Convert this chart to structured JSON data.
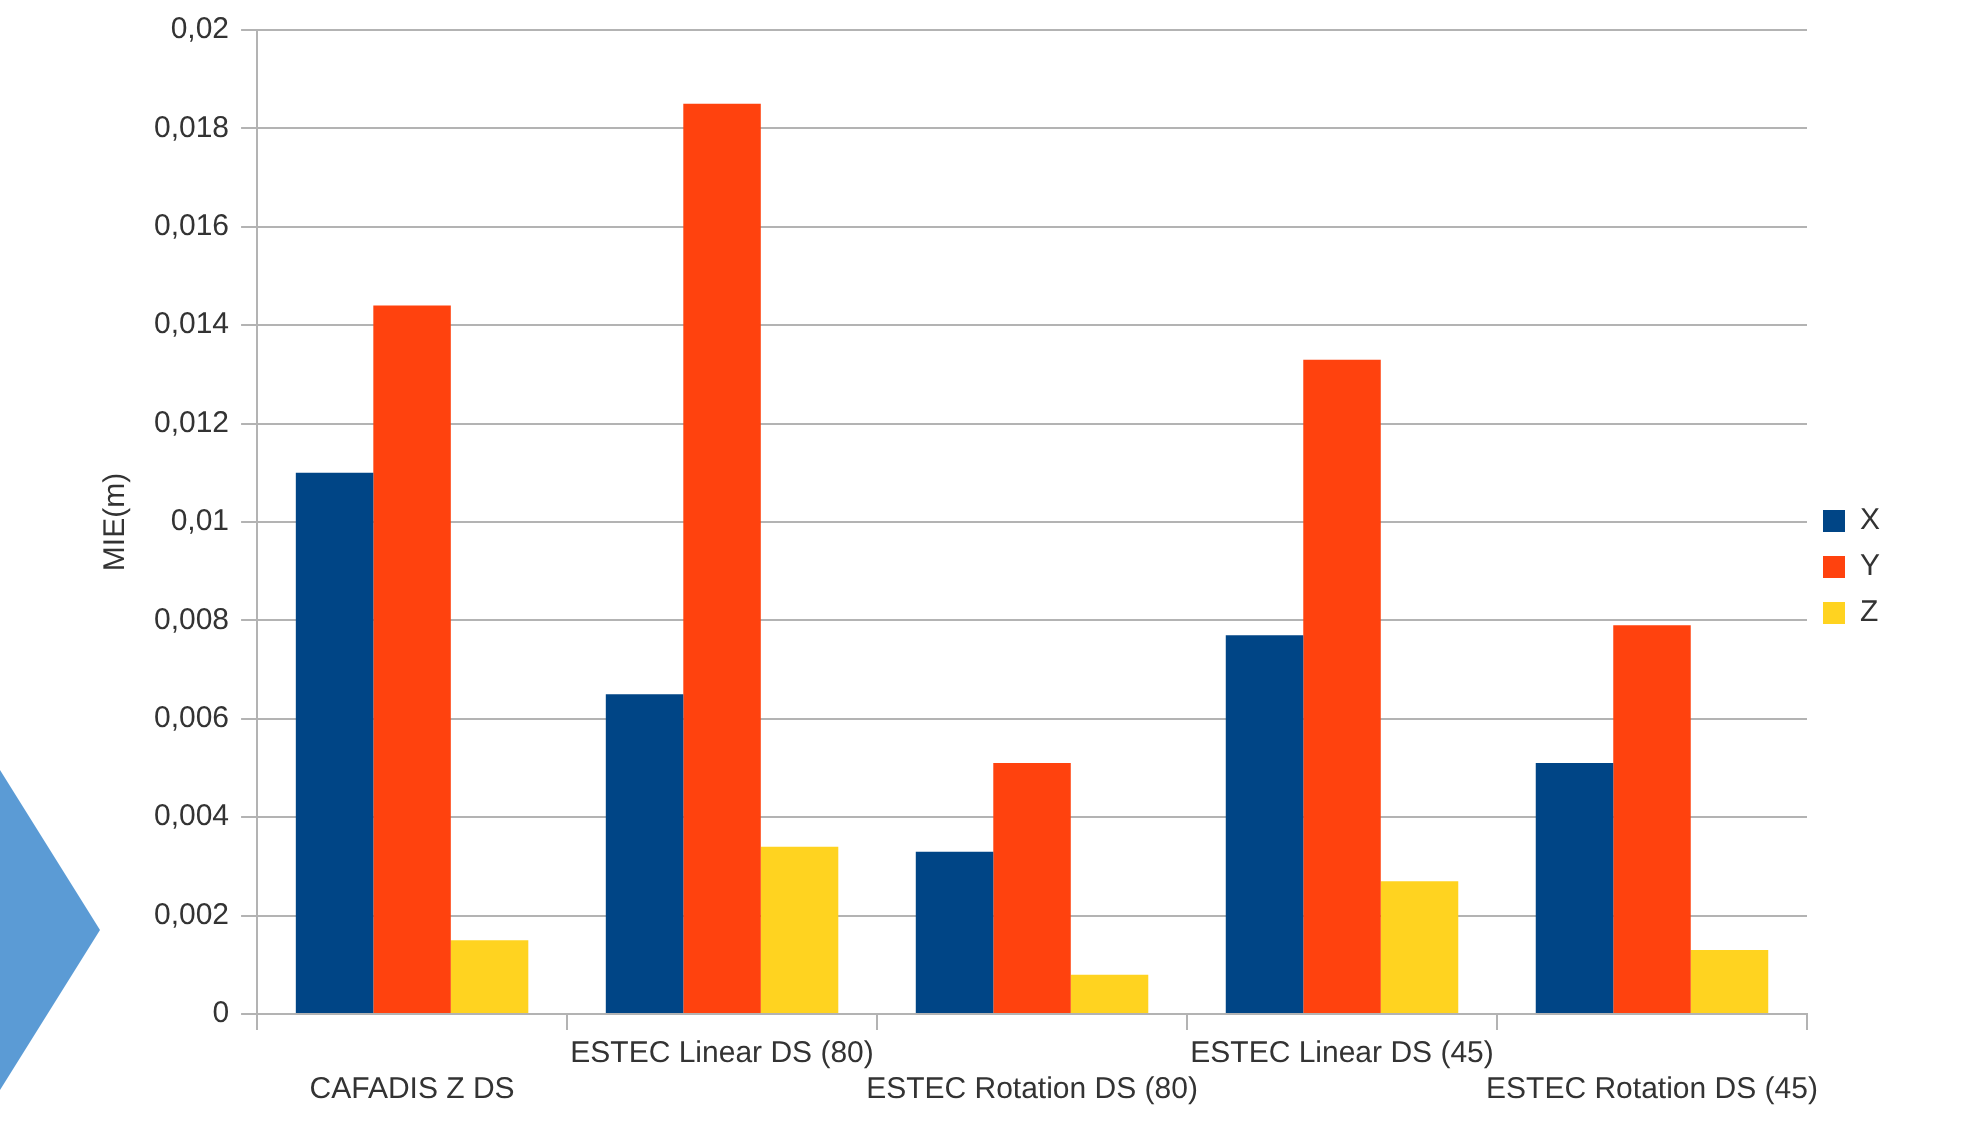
{
  "chart_data": {
    "type": "bar",
    "ylabel": "MIE(m)",
    "categories": [
      "CAFADIS Z DS",
      "ESTEC Linear DS (80)",
      "ESTEC Rotation DS (80)",
      "ESTEC Linear DS (45)",
      "ESTEC Rotation DS (45)"
    ],
    "series": [
      {
        "name": "X",
        "color": "#004586",
        "values": [
          0.011,
          0.0065,
          0.0033,
          0.0077,
          0.0051
        ]
      },
      {
        "name": "Y",
        "color": "#ff420e",
        "values": [
          0.0144,
          0.0185,
          0.0051,
          0.0133,
          0.0079
        ]
      },
      {
        "name": "Z",
        "color": "#ffd320",
        "values": [
          0.0015,
          0.0034,
          0.0008,
          0.0027,
          0.0013
        ]
      }
    ],
    "ylim": [
      0,
      0.02
    ],
    "yticks": [
      {
        "value": 0,
        "label": "0"
      },
      {
        "value": 0.002,
        "label": "0,002"
      },
      {
        "value": 0.004,
        "label": "0,004"
      },
      {
        "value": 0.006,
        "label": "0,006"
      },
      {
        "value": 0.008,
        "label": "0,008"
      },
      {
        "value": 0.01,
        "label": "0,01"
      },
      {
        "value": 0.012,
        "label": "0,012"
      },
      {
        "value": 0.014,
        "label": "0,014"
      },
      {
        "value": 0.016,
        "label": "0,016"
      },
      {
        "value": 0.018,
        "label": "0,018"
      },
      {
        "value": 0.02,
        "label": "0,02"
      }
    ],
    "grid": "y",
    "legend": "right"
  }
}
